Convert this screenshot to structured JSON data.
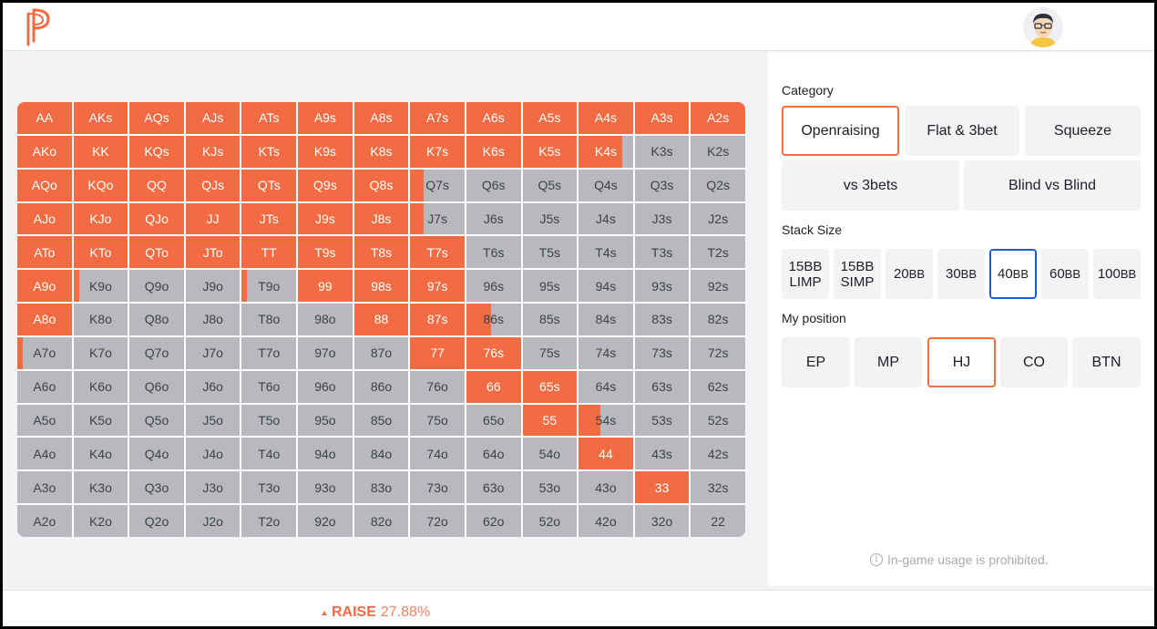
{
  "colors": {
    "accent": "#f26b43",
    "fold": "#b7b9be",
    "selected_blue": "#1e5bd7"
  },
  "header": {
    "logo_icon": "p-logo-icon",
    "avatar_icon": "user-avatar-icon"
  },
  "hands": [
    [
      "AA",
      "AKs",
      "AQs",
      "AJs",
      "ATs",
      "A9s",
      "A8s",
      "A7s",
      "A6s",
      "A5s",
      "A4s",
      "A3s",
      "A2s"
    ],
    [
      "AKo",
      "KK",
      "KQs",
      "KJs",
      "KTs",
      "K9s",
      "K8s",
      "K7s",
      "K6s",
      "K5s",
      "K4s",
      "K3s",
      "K2s"
    ],
    [
      "AQo",
      "KQo",
      "QQ",
      "QJs",
      "QTs",
      "Q9s",
      "Q8s",
      "Q7s",
      "Q6s",
      "Q5s",
      "Q4s",
      "Q3s",
      "Q2s"
    ],
    [
      "AJo",
      "KJo",
      "QJo",
      "JJ",
      "JTs",
      "J9s",
      "J8s",
      "J7s",
      "J6s",
      "J5s",
      "J4s",
      "J3s",
      "J2s"
    ],
    [
      "ATo",
      "KTo",
      "QTo",
      "JTo",
      "TT",
      "T9s",
      "T8s",
      "T7s",
      "T6s",
      "T5s",
      "T4s",
      "T3s",
      "T2s"
    ],
    [
      "A9o",
      "K9o",
      "Q9o",
      "J9o",
      "T9o",
      "99",
      "98s",
      "97s",
      "96s",
      "95s",
      "94s",
      "93s",
      "92s"
    ],
    [
      "A8o",
      "K8o",
      "Q8o",
      "J8o",
      "T8o",
      "98o",
      "88",
      "87s",
      "86s",
      "85s",
      "84s",
      "83s",
      "82s"
    ],
    [
      "A7o",
      "K7o",
      "Q7o",
      "J7o",
      "T7o",
      "97o",
      "87o",
      "77",
      "76s",
      "75s",
      "74s",
      "73s",
      "72s"
    ],
    [
      "A6o",
      "K6o",
      "Q6o",
      "J6o",
      "T6o",
      "96o",
      "86o",
      "76o",
      "66",
      "65s",
      "64s",
      "63s",
      "62s"
    ],
    [
      "A5o",
      "K5o",
      "Q5o",
      "J5o",
      "T5o",
      "95o",
      "85o",
      "75o",
      "65o",
      "55",
      "54s",
      "53s",
      "52s"
    ],
    [
      "A4o",
      "K4o",
      "Q4o",
      "J4o",
      "T4o",
      "94o",
      "84o",
      "74o",
      "64o",
      "54o",
      "44",
      "43s",
      "42s"
    ],
    [
      "A3o",
      "K3o",
      "Q3o",
      "J3o",
      "T3o",
      "93o",
      "83o",
      "73o",
      "63o",
      "53o",
      "43o",
      "33",
      "32s"
    ],
    [
      "A2o",
      "K2o",
      "Q2o",
      "J2o",
      "T2o",
      "92o",
      "82o",
      "72o",
      "62o",
      "52o",
      "42o",
      "32o",
      "22"
    ]
  ],
  "raise_freq": [
    [
      1,
      1,
      1,
      1,
      1,
      1,
      1,
      1,
      1,
      1,
      1,
      1,
      1
    ],
    [
      1,
      1,
      1,
      1,
      1,
      1,
      1,
      1,
      1,
      1,
      0.8,
      0,
      0
    ],
    [
      1,
      1,
      1,
      1,
      1,
      1,
      1,
      0.25,
      0,
      0,
      0,
      0,
      0
    ],
    [
      1,
      1,
      1,
      1,
      1,
      1,
      1,
      0.25,
      0,
      0,
      0,
      0,
      0
    ],
    [
      1,
      1,
      1,
      1,
      1,
      1,
      1,
      1,
      0,
      0,
      0,
      0,
      0
    ],
    [
      1,
      0.1,
      0,
      0,
      0.1,
      1,
      1,
      1,
      0,
      0,
      0,
      0,
      0
    ],
    [
      1,
      0,
      0,
      0,
      0,
      0,
      1,
      1,
      0.45,
      0,
      0,
      0,
      0
    ],
    [
      0.1,
      0,
      0,
      0,
      0,
      0,
      0,
      1,
      1,
      0,
      0,
      0,
      0
    ],
    [
      0,
      0,
      0,
      0,
      0,
      0,
      0,
      0,
      1,
      1,
      0,
      0,
      0
    ],
    [
      0,
      0,
      0,
      0,
      0,
      0,
      0,
      0,
      0,
      1,
      0.4,
      0,
      0
    ],
    [
      0,
      0,
      0,
      0,
      0,
      0,
      0,
      0,
      0,
      0,
      1,
      0,
      0
    ],
    [
      0,
      0,
      0,
      0,
      0,
      0,
      0,
      0,
      0,
      0,
      0,
      1,
      0
    ],
    [
      0,
      0,
      0,
      0,
      0,
      0,
      0,
      0,
      0,
      0,
      0,
      0,
      0
    ]
  ],
  "category": {
    "title": "Category",
    "options": [
      "Openraising",
      "Flat & 3bet",
      "Squeeze",
      "vs 3bets",
      "Blind vs Blind"
    ],
    "selected": "Openraising"
  },
  "stack": {
    "title": "Stack Size",
    "options": [
      {
        "top": "15BB",
        "bottom": "LIMP"
      },
      {
        "top": "15BB",
        "bottom": "SIMP"
      },
      {
        "num": "20",
        "unit": "BB"
      },
      {
        "num": "30",
        "unit": "BB"
      },
      {
        "num": "40",
        "unit": "BB"
      },
      {
        "num": "60",
        "unit": "BB"
      },
      {
        "num": "100",
        "unit": "BB"
      }
    ],
    "selected": "40BB"
  },
  "position": {
    "title": "My position",
    "options": [
      "EP",
      "MP",
      "HJ",
      "CO",
      "BTN"
    ],
    "selected": "HJ"
  },
  "notice": "In-game usage is prohibited.",
  "footer": {
    "label": "RAISE",
    "percent": "27.88%"
  }
}
